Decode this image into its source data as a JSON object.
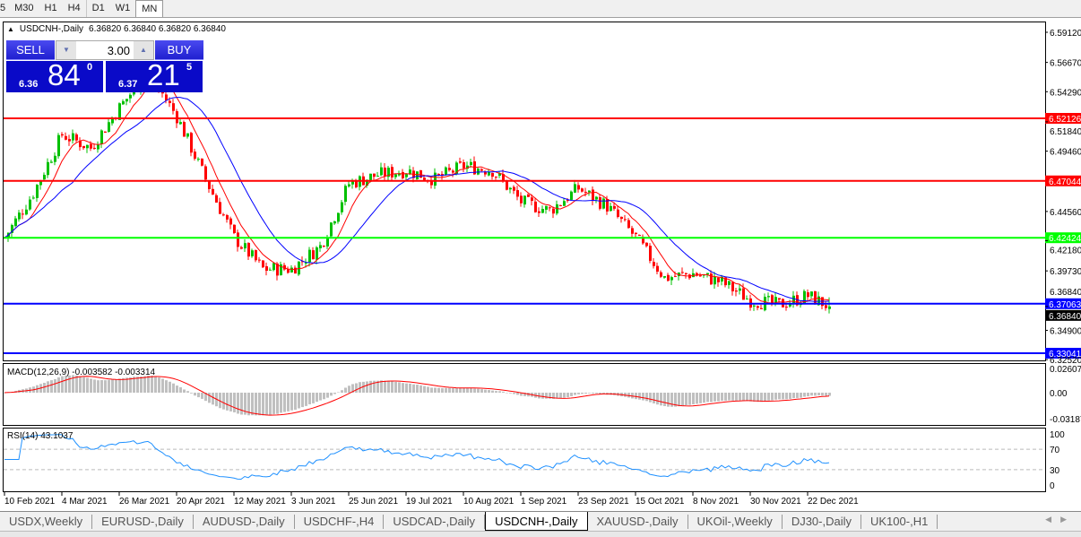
{
  "toolbar": {
    "timeframes": [
      "5",
      "M30",
      "H1",
      "H4",
      "D1",
      "W1",
      "MN"
    ],
    "active": "MN"
  },
  "header": {
    "symbol": "USDCNH-,Daily",
    "ohlc": "6.36820 6.36840 6.36820 6.36840"
  },
  "trade": {
    "sell_label": "SELL",
    "buy_label": "BUY",
    "lot": "3.00",
    "sell_prefix": "6.36",
    "sell_big": "84",
    "sell_sup": "0",
    "buy_prefix": "6.37",
    "buy_big": "21",
    "buy_sup": "5"
  },
  "price_axis": {
    "ticks": [
      "6.59120",
      "6.56670",
      "6.54290",
      "6.51840",
      "6.49460",
      "6.44560",
      "6.42180",
      "6.39730",
      "6.36840",
      "6.34900",
      "6.32520"
    ]
  },
  "hlines": [
    {
      "price": "6.52126",
      "color": "#ff0000"
    },
    {
      "price": "6.47044",
      "color": "#ff0000"
    },
    {
      "price": "6.42424",
      "color": "#00ff00"
    },
    {
      "price": "6.37063",
      "color": "#0000ff"
    },
    {
      "price": "6.33041",
      "color": "#0000ff"
    }
  ],
  "bid_label": "6.36840",
  "chart": {
    "type": "candlestick",
    "symbol": "USDCNH",
    "timeframe": "Daily",
    "bull_color": "#00c000",
    "bear_color": "#ff0000",
    "ma_fast_color": "#ff0000",
    "ma_slow_color": "#0000ff",
    "approx_close_path": [
      6.4244,
      6.4608,
      6.5081,
      6.4972,
      6.53,
      6.5592,
      6.5227,
      6.4717,
      6.4244,
      6.3989,
      6.3989,
      6.4171,
      6.4681,
      6.4754,
      6.479,
      6.4717,
      6.4826,
      6.479,
      6.4535,
      6.4462,
      6.4644,
      6.4499,
      6.4244,
      6.3916,
      6.3952,
      6.388,
      6.3734,
      6.3698,
      6.3771,
      6.3684
    ]
  },
  "macd": {
    "label": "MACD(12,26,9) -0.003582 -0.003314",
    "ticks": [
      "0.02607",
      "0.00",
      "-0.03187"
    ],
    "bar_color": "#c0c0c0",
    "signal_color": "#ff0000"
  },
  "rsi": {
    "label": "RSI(14) 43.1037",
    "ticks": [
      "100",
      "70",
      "30",
      "0"
    ],
    "line_color": "#1e90ff"
  },
  "date_axis": [
    "10 Feb 2021",
    "4 Mar 2021",
    "26 Mar 2021",
    "20 Apr 2021",
    "12 May 2021",
    "3 Jun 2021",
    "25 Jun 2021",
    "19 Jul 2021",
    "10 Aug 2021",
    "1 Sep 2021",
    "23 Sep 2021",
    "15 Oct 2021",
    "8 Nov 2021",
    "30 Nov 2021",
    "22 Dec 2021"
  ],
  "tabs": [
    "USDX,Weekly",
    "EURUSD-,Daily",
    "AUDUSD-,Daily",
    "USDCHF-,H4",
    "USDCAD-,Daily",
    "USDCNH-,Daily",
    "XAUUSD-,Daily",
    "UKOil-,Weekly",
    "DJ30-,Daily",
    "UK100-,H1"
  ],
  "active_tab": "USDCNH-,Daily"
}
